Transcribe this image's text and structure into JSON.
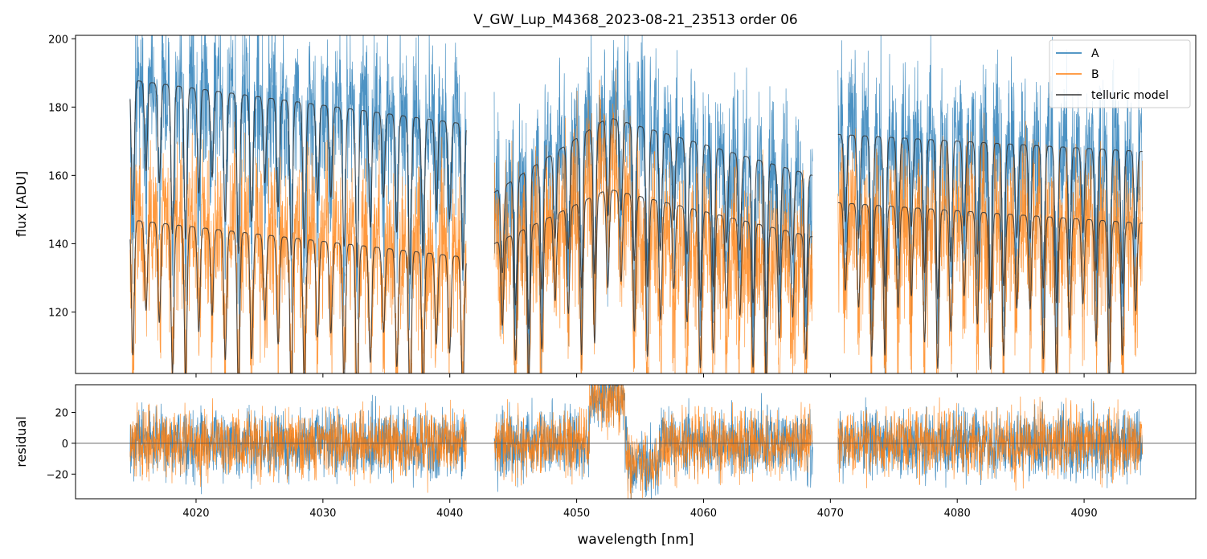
{
  "chart_data": [
    {
      "type": "line",
      "panel": "main",
      "title": "V_GW_Lup_M4368_2023-08-21_23513  order 06",
      "xlabel": "",
      "ylabel": "flux [ADU]",
      "xlim": [
        4010.5,
        4098.8
      ],
      "ylim": [
        102,
        201
      ],
      "yticks": [
        120,
        140,
        160,
        180,
        200
      ],
      "ytick_labels": [
        "120",
        "140",
        "160",
        "180",
        "200"
      ],
      "legend_position": "top-right",
      "segments": [
        [
          4014.8,
          4041.3
        ],
        [
          4043.5,
          4068.6
        ],
        [
          4070.6,
          4094.6
        ]
      ],
      "series": [
        {
          "name": "A",
          "label": "A",
          "color": "#1f77b4",
          "kind": "spectrum",
          "level": [
            [
              4014.8,
              186
            ],
            [
              4041.3,
              176
            ],
            [
              4043.5,
              152
            ],
            [
              4052.5,
              178
            ],
            [
              4068.6,
              155
            ],
            [
              4070.6,
              173
            ],
            [
              4094.6,
              165
            ]
          ],
          "noise": 12
        },
        {
          "name": "B",
          "label": "B",
          "color": "#ff7f0e",
          "kind": "spectrum",
          "level": [
            [
              4014.8,
              149
            ],
            [
              4041.3,
              138
            ],
            [
              4043.5,
              140
            ],
            [
              4050.0,
              150
            ],
            [
              4052.5,
              170
            ],
            [
              4055.0,
              142
            ],
            [
              4068.6,
              136
            ],
            [
              4070.6,
              150
            ],
            [
              4094.6,
              145
            ]
          ],
          "noise": 12
        },
        {
          "name": "telluric model A",
          "label": "telluric model",
          "color": "#333333",
          "kind": "model",
          "level": [
            [
              4014.8,
              188
            ],
            [
              4041.3,
              175
            ],
            [
              4043.5,
              155
            ],
            [
              4052.5,
              177
            ],
            [
              4068.6,
              160
            ],
            [
              4070.6,
              172
            ],
            [
              4094.6,
              167
            ]
          ]
        },
        {
          "name": "telluric model B",
          "label": "telluric model",
          "color": "#333333",
          "kind": "model",
          "level": [
            [
              4014.8,
              147
            ],
            [
              4041.3,
              136
            ],
            [
              4043.5,
              140
            ],
            [
              4052.5,
              156
            ],
            [
              4068.6,
              142
            ],
            [
              4070.6,
              152
            ],
            [
              4094.6,
              146
            ]
          ]
        }
      ]
    },
    {
      "type": "line",
      "panel": "residual",
      "xlabel": "wavelength [nm]",
      "ylabel": "residual",
      "xlim": [
        4010.5,
        4098.8
      ],
      "ylim": [
        -36,
        38
      ],
      "xticks": [
        4020,
        4030,
        4040,
        4050,
        4060,
        4070,
        4080,
        4090
      ],
      "xtick_labels": [
        "4020",
        "4030",
        "4040",
        "4050",
        "4060",
        "4070",
        "4080",
        "4090"
      ],
      "yticks": [
        -20,
        0,
        20
      ],
      "ytick_labels": [
        "−20",
        "0",
        "20"
      ],
      "zero_line": 0,
      "series": [
        {
          "name": "A",
          "color": "#1f77b4",
          "noise": 11
        },
        {
          "name": "B",
          "color": "#ff7f0e",
          "noise": 11
        }
      ]
    }
  ]
}
